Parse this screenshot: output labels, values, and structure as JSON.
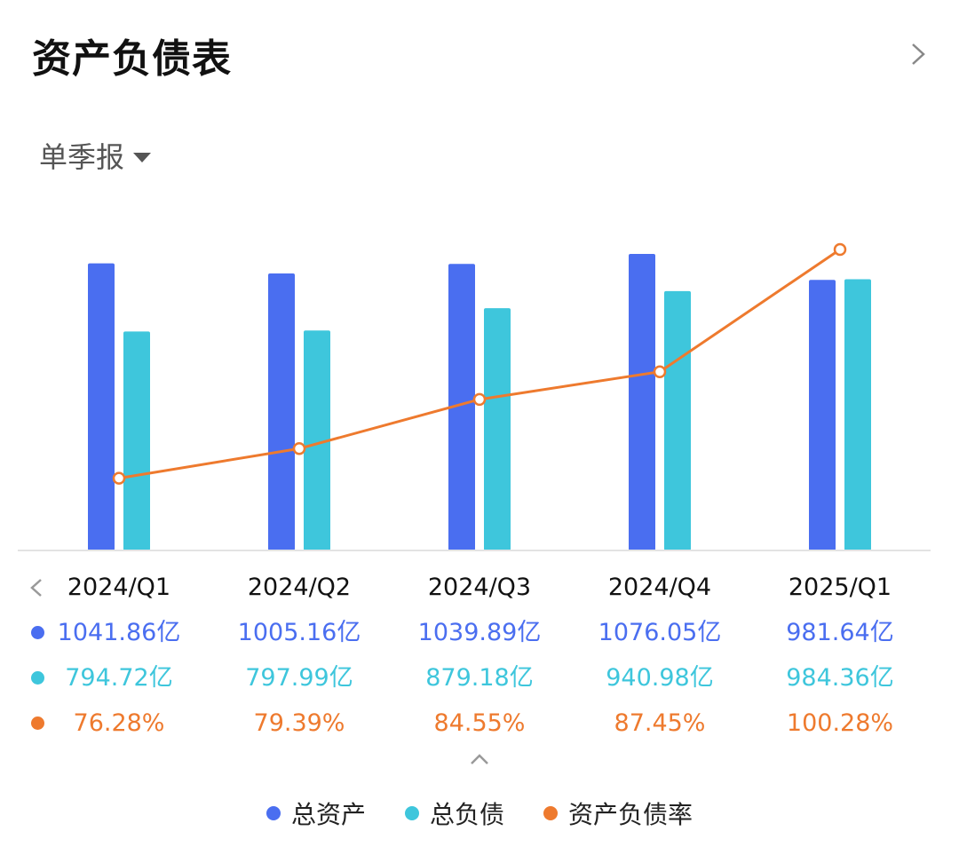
{
  "header": {
    "title": "资产负债表",
    "period_selector": "单季报"
  },
  "colors": {
    "total_assets": "#4a6ef0",
    "total_liabilities": "#3ec6dc",
    "debt_ratio": "#ee7a2e"
  },
  "chart_data": {
    "type": "bar",
    "categories": [
      "2024/Q1",
      "2024/Q2",
      "2024/Q3",
      "2024/Q4",
      "2025/Q1"
    ],
    "series": [
      {
        "name": "总资产",
        "type": "bar",
        "values": [
          1041.86,
          1005.16,
          1039.89,
          1076.05,
          981.64
        ],
        "labels": [
          "1041.86亿",
          "1005.16亿",
          "1039.89亿",
          "1076.05亿",
          "981.64亿"
        ]
      },
      {
        "name": "总负债",
        "type": "bar",
        "values": [
          794.72,
          797.99,
          879.18,
          940.98,
          984.36
        ],
        "labels": [
          "794.72亿",
          "797.99亿",
          "879.18亿",
          "940.98亿",
          "984.36亿"
        ]
      },
      {
        "name": "资产负债率",
        "type": "line",
        "values": [
          76.28,
          79.39,
          84.55,
          87.45,
          100.28
        ],
        "labels": [
          "76.28%",
          "79.39%",
          "84.55%",
          "87.45%",
          "100.28%"
        ]
      }
    ],
    "bar_ylim": [
      0,
      1076.05
    ],
    "line_ylim": [
      72.8,
      100.28
    ],
    "grid": false,
    "legend_position": "bottom"
  }
}
